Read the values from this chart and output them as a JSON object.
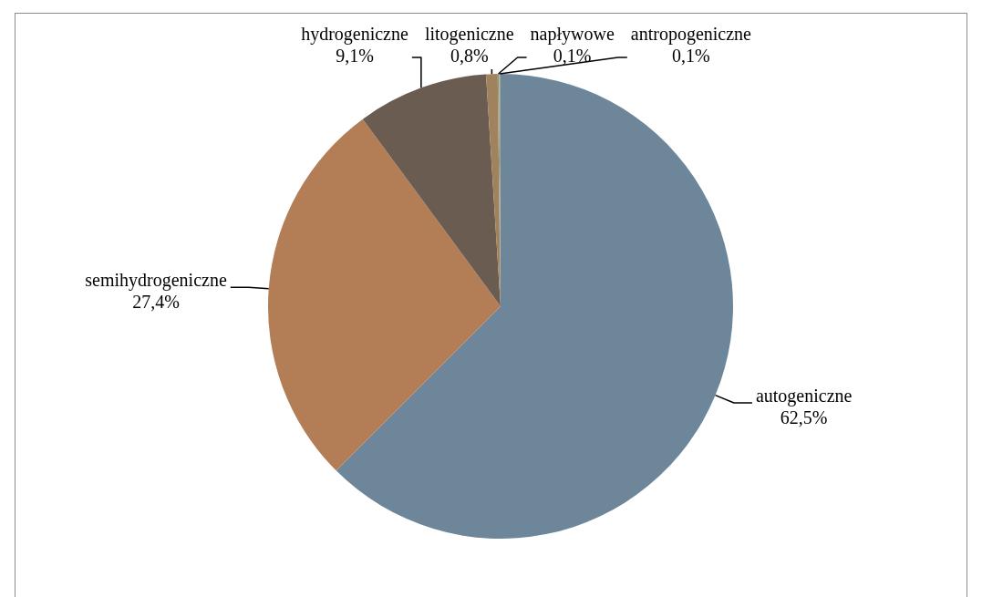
{
  "chart_data": {
    "type": "pie",
    "categories": [
      "autogeniczne",
      "semihydrogeniczne",
      "hydrogeniczne",
      "litogeniczne",
      "napływowe",
      "antropogeniczne"
    ],
    "values": [
      62.5,
      27.4,
      9.1,
      0.8,
      0.1,
      0.1
    ],
    "colors": [
      "#6e869a",
      "#b37d55",
      "#6b5c51",
      "#a0835e",
      "#8c9a7c",
      "#a9a48e"
    ],
    "value_labels": [
      "62,5%",
      "27,4%",
      "9,1%",
      "0,8%",
      "0,1%",
      "0,1%"
    ]
  }
}
